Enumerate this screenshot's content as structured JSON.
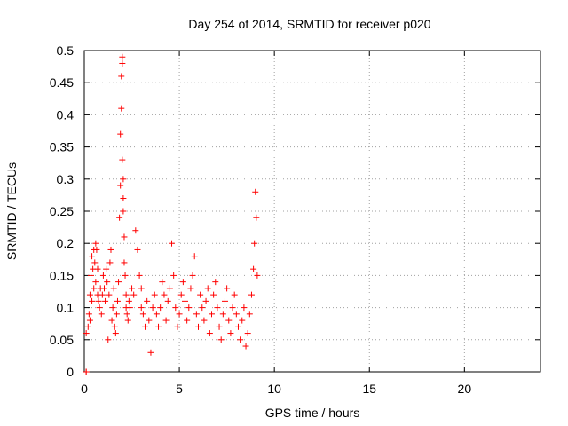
{
  "chart_data": {
    "type": "scatter",
    "title": "Day 254 of 2014, SRMTID for receiver p020",
    "xlabel": "GPS time / hours",
    "ylabel": "SRMTID / TECUs",
    "xlim": [
      0,
      24
    ],
    "ylim": [
      0,
      0.5
    ],
    "xticks": [
      0,
      5,
      10,
      15,
      20
    ],
    "xtick_labels": [
      "0",
      "5",
      "10",
      "15",
      "20"
    ],
    "yticks": [
      0,
      0.05,
      0.1,
      0.15,
      0.2,
      0.25,
      0.3,
      0.35,
      0.4,
      0.45,
      0.5
    ],
    "ytick_labels": [
      "0",
      "0.05",
      "0.1",
      "0.15",
      "0.2",
      "0.25",
      "0.3",
      "0.35",
      "0.4",
      "0.45",
      "0.5"
    ],
    "grid": true,
    "marker": "+",
    "series": [
      {
        "name": "SRMTID",
        "color": "#ff0000",
        "x": [
          0.1,
          0.1,
          0.1,
          0.2,
          0.25,
          0.3,
          0.3,
          0.35,
          0.4,
          0.4,
          0.45,
          0.5,
          0.5,
          0.55,
          0.6,
          0.6,
          0.65,
          0.7,
          0.7,
          0.75,
          0.8,
          0.85,
          0.9,
          0.95,
          1.0,
          1.05,
          1.1,
          1.15,
          1.2,
          1.25,
          1.3,
          1.35,
          1.4,
          1.45,
          1.5,
          1.55,
          1.6,
          1.65,
          1.7,
          1.75,
          1.8,
          1.85,
          1.9,
          1.9,
          1.95,
          1.95,
          2.0,
          2.0,
          2.0,
          2.05,
          2.05,
          2.05,
          2.1,
          2.1,
          2.15,
          2.2,
          2.2,
          2.25,
          2.3,
          2.35,
          2.4,
          2.5,
          2.6,
          2.7,
          2.8,
          2.9,
          3.0,
          3.0,
          3.1,
          3.2,
          3.3,
          3.4,
          3.5,
          3.6,
          3.7,
          3.8,
          3.9,
          4.0,
          4.1,
          4.2,
          4.3,
          4.4,
          4.5,
          4.6,
          4.7,
          4.8,
          4.9,
          5.0,
          5.1,
          5.2,
          5.3,
          5.4,
          5.5,
          5.6,
          5.7,
          5.8,
          5.9,
          6.0,
          6.1,
          6.2,
          6.3,
          6.4,
          6.5,
          6.6,
          6.7,
          6.8,
          6.9,
          7.0,
          7.1,
          7.2,
          7.3,
          7.4,
          7.5,
          7.6,
          7.7,
          7.8,
          7.9,
          8.0,
          8.1,
          8.2,
          8.3,
          8.4,
          8.5,
          8.6,
          8.7,
          8.8,
          8.9,
          8.95,
          9.0,
          9.05,
          9.1
        ],
        "y": [
          0.06,
          0.0,
          0.0,
          0.07,
          0.09,
          0.12,
          0.08,
          0.15,
          0.18,
          0.11,
          0.16,
          0.13,
          0.19,
          0.17,
          0.2,
          0.14,
          0.19,
          0.12,
          0.16,
          0.11,
          0.1,
          0.13,
          0.09,
          0.12,
          0.15,
          0.13,
          0.11,
          0.16,
          0.14,
          0.05,
          0.12,
          0.17,
          0.19,
          0.08,
          0.1,
          0.13,
          0.07,
          0.06,
          0.09,
          0.11,
          0.14,
          0.24,
          0.29,
          0.37,
          0.41,
          0.46,
          0.48,
          0.49,
          0.33,
          0.27,
          0.3,
          0.25,
          0.21,
          0.17,
          0.15,
          0.12,
          0.1,
          0.09,
          0.08,
          0.11,
          0.1,
          0.13,
          0.12,
          0.22,
          0.19,
          0.15,
          0.1,
          0.13,
          0.09,
          0.07,
          0.11,
          0.08,
          0.03,
          0.1,
          0.12,
          0.09,
          0.07,
          0.1,
          0.14,
          0.12,
          0.08,
          0.11,
          0.13,
          0.2,
          0.15,
          0.1,
          0.07,
          0.09,
          0.12,
          0.14,
          0.11,
          0.08,
          0.1,
          0.13,
          0.15,
          0.18,
          0.09,
          0.07,
          0.12,
          0.1,
          0.08,
          0.11,
          0.13,
          0.06,
          0.09,
          0.12,
          0.14,
          0.1,
          0.07,
          0.05,
          0.09,
          0.11,
          0.13,
          0.08,
          0.06,
          0.1,
          0.12,
          0.09,
          0.07,
          0.05,
          0.08,
          0.1,
          0.04,
          0.06,
          0.09,
          0.12,
          0.16,
          0.2,
          0.28,
          0.24,
          0.15
        ]
      }
    ]
  }
}
